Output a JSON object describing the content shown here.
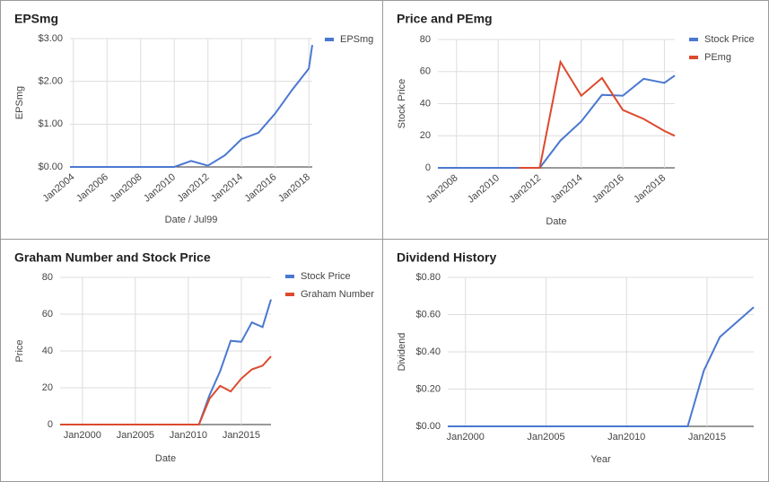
{
  "chart_data": [
    {
      "type": "line",
      "title": "EPSmg",
      "x_label": "Date / Jul99",
      "y_label": "EPSmg",
      "legend": "right",
      "x": [
        2003.8,
        2005,
        2006,
        2007,
        2008,
        2009,
        2010,
        2011,
        2012,
        2013,
        2014,
        2015,
        2016,
        2017,
        2018,
        2018.2
      ],
      "series": [
        {
          "name": "EPSmg",
          "color": "#4a78d0",
          "values": [
            0,
            0,
            0,
            0,
            0,
            0,
            0,
            0.14,
            0.03,
            0.27,
            0.65,
            0.8,
            1.25,
            1.8,
            2.3,
            2.85
          ]
        }
      ],
      "xlim": [
        2003.8,
        2018.2
      ],
      "xticks": [
        {
          "value": 2004,
          "label": "Jan2004"
        },
        {
          "value": 2006,
          "label": "Jan2006"
        },
        {
          "value": 2008,
          "label": "Jan2008"
        },
        {
          "value": 2010,
          "label": "Jan2010"
        },
        {
          "value": 2012,
          "label": "Jan2012"
        },
        {
          "value": 2014,
          "label": "Jan2014"
        },
        {
          "value": 2016,
          "label": "Jan2016"
        },
        {
          "value": 2018,
          "label": "Jan2018"
        }
      ],
      "ylim": [
        0,
        3
      ],
      "yticks": [
        {
          "value": 0,
          "label": "$0.00"
        },
        {
          "value": 1,
          "label": "$1.00"
        },
        {
          "value": 2,
          "label": "$2.00"
        },
        {
          "value": 3,
          "label": "$3.00"
        }
      ],
      "grid": true
    },
    {
      "type": "line",
      "title": "Price and PEmg",
      "x_label": "Date",
      "y_label": "Stock Price",
      "legend": "right",
      "x": [
        2007.1,
        2008,
        2009,
        2010,
        2011,
        2012,
        2013,
        2014,
        2015,
        2016,
        2017,
        2018,
        2018.5
      ],
      "series": [
        {
          "name": "Stock Price",
          "color": "#4a78d0",
          "values": [
            0,
            0,
            0,
            0,
            0,
            0,
            17,
            29,
            45.5,
            45,
            55.5,
            53,
            57.5
          ]
        },
        {
          "name": "PEmg",
          "color": "#dc4a2e",
          "values": [
            null,
            null,
            null,
            null,
            0,
            0,
            66,
            45,
            56,
            36,
            30.5,
            23,
            20
          ]
        }
      ],
      "xlim": [
        2007.1,
        2018.5
      ],
      "xticks": [
        {
          "value": 2008,
          "label": "Jan2008"
        },
        {
          "value": 2010,
          "label": "Jan2010"
        },
        {
          "value": 2012,
          "label": "Jan2012"
        },
        {
          "value": 2014,
          "label": "Jan2014"
        },
        {
          "value": 2016,
          "label": "Jan2016"
        },
        {
          "value": 2018,
          "label": "Jan2018"
        }
      ],
      "ylim": [
        0,
        80
      ],
      "yticks": [
        0,
        20,
        40,
        60,
        80
      ],
      "grid": true
    },
    {
      "type": "line",
      "title": "Graham Number and Stock Price",
      "x_label": "Date",
      "y_label": "Price",
      "legend": "right",
      "x": [
        1997.9,
        2011,
        2012,
        2013,
        2014,
        2015,
        2016,
        2017,
        2017.8
      ],
      "series": [
        {
          "name": "Stock Price",
          "color": "#4a78d0",
          "values": [
            0,
            0,
            16,
            29,
            45.5,
            45,
            55.5,
            53,
            68
          ]
        },
        {
          "name": "Graham Number",
          "color": "#dc4a2e",
          "values": [
            0,
            0,
            14,
            21,
            18,
            25,
            30,
            32,
            37
          ]
        }
      ],
      "xlim": [
        1997.9,
        2017.8
      ],
      "xticks": [
        {
          "value": 2000,
          "label": "Jan2000"
        },
        {
          "value": 2005,
          "label": "Jan2005"
        },
        {
          "value": 2010,
          "label": "Jan2010"
        },
        {
          "value": 2015,
          "label": "Jan2015"
        }
      ],
      "ylim": [
        0,
        80
      ],
      "yticks": [
        0,
        20,
        40,
        60,
        80
      ],
      "grid": true
    },
    {
      "type": "line",
      "title": "Dividend History",
      "x_label": "Year",
      "y_label": "Dividend",
      "x": [
        1998.9,
        2013.8,
        2014.8,
        2015.8,
        2017.9
      ],
      "series": [
        {
          "name": "Dividend",
          "color": "#4a78d0",
          "values": [
            0,
            0,
            0.3,
            0.48,
            0.64
          ]
        }
      ],
      "xlim": [
        1998.9,
        2017.9
      ],
      "xticks": [
        {
          "value": 2000,
          "label": "Jan2000"
        },
        {
          "value": 2005,
          "label": "Jan2005"
        },
        {
          "value": 2010,
          "label": "Jan2010"
        },
        {
          "value": 2015,
          "label": "Jan2015"
        }
      ],
      "ylim": [
        0,
        0.8
      ],
      "yticks": [
        {
          "value": 0,
          "label": "$0.00"
        },
        {
          "value": 0.2,
          "label": "$0.20"
        },
        {
          "value": 0.4,
          "label": "$0.40"
        },
        {
          "value": 0.6,
          "label": "$0.60"
        },
        {
          "value": 0.8,
          "label": "$0.80"
        }
      ],
      "grid": true
    }
  ]
}
